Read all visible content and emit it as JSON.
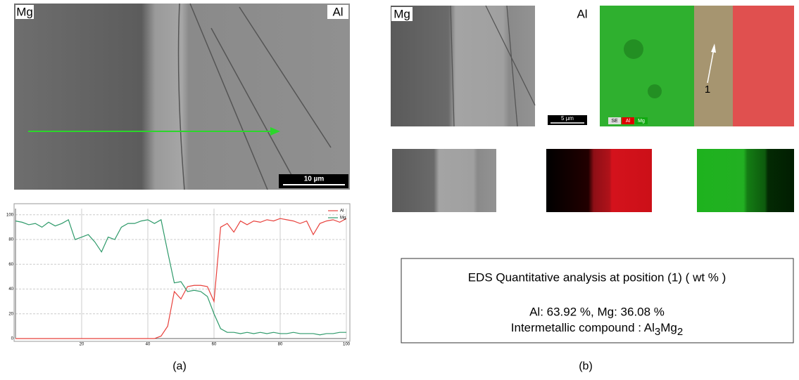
{
  "figure": {
    "panel_a": {
      "label_left": "Mg",
      "label_right": "Al",
      "scale_bar": "10 µm",
      "caption": "(a)"
    },
    "panel_b": {
      "label_left": "Mg",
      "label_right": "Al",
      "scale_bar": "5 µm",
      "map_legend": [
        "SE",
        "Al",
        "Mg"
      ],
      "point_label": "1",
      "caption": "(b)"
    },
    "eds_box": {
      "title": "EDS Quantitative analysis at position (1) ( wt % )",
      "composition": "Al: 63.92 %, Mg: 36.08 %",
      "compound_prefix": "Intermetallic compound : ",
      "compound_parts": [
        "Al",
        "3",
        "Mg",
        "2"
      ]
    }
  },
  "chart_data": {
    "type": "line",
    "x": [
      0,
      2,
      4,
      6,
      8,
      10,
      12,
      14,
      16,
      18,
      20,
      22,
      24,
      26,
      28,
      30,
      32,
      34,
      36,
      38,
      40,
      42,
      44,
      46,
      48,
      50,
      52,
      54,
      56,
      58,
      60,
      62,
      64,
      66,
      68,
      70,
      72,
      74,
      76,
      78,
      80,
      82,
      84,
      86,
      88,
      90,
      92,
      94,
      96,
      98,
      100
    ],
    "series": [
      {
        "name": "Al",
        "color": "#e8413c",
        "values": [
          0,
          0,
          0,
          0,
          0,
          0,
          0,
          0,
          0,
          0,
          0,
          0,
          0,
          0,
          0,
          0,
          0,
          0,
          0,
          0,
          0,
          0,
          2,
          10,
          38,
          32,
          42,
          43,
          43,
          42,
          30,
          90,
          93,
          86,
          95,
          92,
          95,
          94,
          96,
          95,
          97,
          96,
          95,
          93,
          95,
          84,
          93,
          95,
          96,
          94,
          97
        ]
      },
      {
        "name": "Mg",
        "color": "#2e9a6a",
        "values": [
          95,
          94,
          92,
          93,
          90,
          94,
          91,
          93,
          96,
          80,
          82,
          84,
          78,
          70,
          82,
          80,
          90,
          93,
          93,
          95,
          96,
          93,
          96,
          70,
          45,
          46,
          38,
          39,
          38,
          34,
          20,
          8,
          5,
          5,
          4,
          5,
          4,
          5,
          4,
          5,
          4,
          4,
          5,
          4,
          4,
          4,
          3,
          4,
          4,
          5,
          5
        ]
      }
    ],
    "xlim": [
      0,
      100
    ],
    "xticks": [
      20,
      40,
      60,
      80,
      100
    ],
    "ylim": [
      0,
      105
    ],
    "yticks": [
      0,
      20,
      40,
      60,
      80,
      100
    ],
    "grid": true
  }
}
